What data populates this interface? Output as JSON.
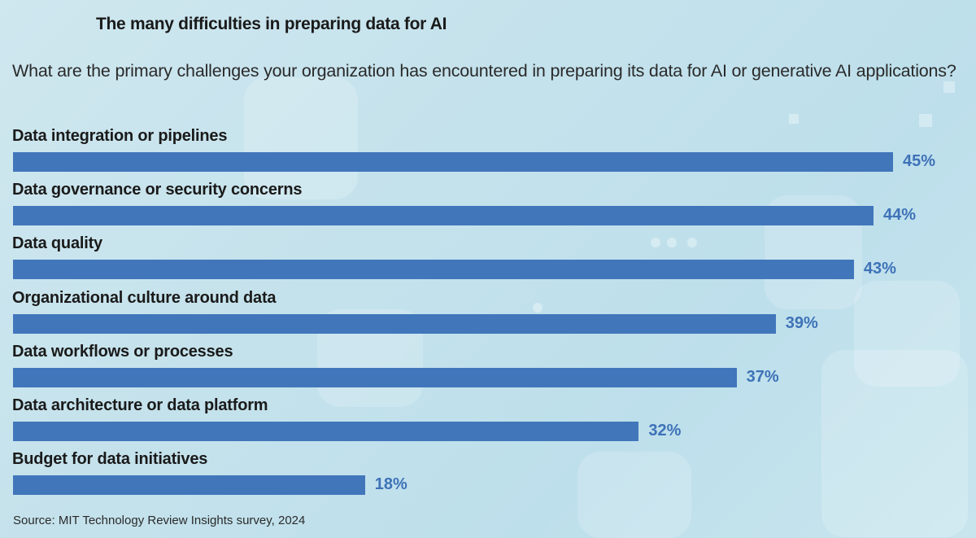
{
  "chart_data": {
    "type": "bar",
    "orientation": "horizontal",
    "title": "The many difficulties in preparing data for AI",
    "subtitle": "What are the primary challenges your organization has encountered in preparing its data for AI or generative AI applications?",
    "categories": [
      "Data integration or pipelines",
      "Data governance or security concerns",
      "Data quality",
      "Organizational culture around data",
      "Data workflows or processes",
      "Data architecture or data platform",
      "Budget for data initiatives"
    ],
    "values": [
      45,
      44,
      43,
      39,
      37,
      32,
      18
    ],
    "value_labels": [
      "45%",
      "44%",
      "43%",
      "39%",
      "37%",
      "32%",
      "18%"
    ],
    "unit": "%",
    "xlabel": "",
    "ylabel": "",
    "xlim": [
      0,
      45
    ],
    "grid": false,
    "legend": null,
    "source": "Source: MIT Technology Review Insights survey, 2024",
    "colors": {
      "bar": "#4176bb",
      "value_label": "#3e72b8"
    }
  }
}
